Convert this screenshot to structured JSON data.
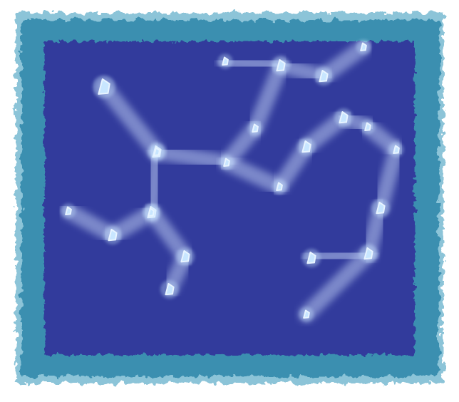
{
  "board": {
    "name": "constellation-map",
    "colors": {
      "background": "#ffffff",
      "frame_outer": "#8cc4d8",
      "frame": "#3a8fb0",
      "frame_dark": "#2e7aa0",
      "sky": "#333a9c",
      "sky_deep": "#2d3290",
      "path_glow": "#b8c8f0",
      "star": "#c8e6ff",
      "star_outline": "#e8f4ff"
    }
  },
  "stars": [
    {
      "id": "s1",
      "icon": "star-glyph",
      "size": "large"
    },
    {
      "id": "s2",
      "icon": "star-glyph",
      "size": "medium"
    },
    {
      "id": "s3",
      "icon": "star-glyph",
      "size": "medium"
    },
    {
      "id": "s4",
      "icon": "star-glyph",
      "size": "medium"
    },
    {
      "id": "s5",
      "icon": "star-glyph",
      "size": "small"
    },
    {
      "id": "s6",
      "icon": "star-glyph",
      "size": "small"
    },
    {
      "id": "s7",
      "icon": "star-glyph",
      "size": "small"
    },
    {
      "id": "s8",
      "icon": "star-glyph",
      "size": "medium"
    },
    {
      "id": "s9",
      "icon": "star-glyph",
      "size": "small"
    },
    {
      "id": "s10",
      "icon": "star-glyph",
      "size": "medium"
    },
    {
      "id": "s11",
      "icon": "star-glyph",
      "size": "small"
    },
    {
      "id": "s12",
      "icon": "star-glyph",
      "size": "medium"
    },
    {
      "id": "s13",
      "icon": "star-glyph",
      "size": "small"
    },
    {
      "id": "s14",
      "icon": "star-glyph",
      "size": "medium"
    },
    {
      "id": "s15",
      "icon": "star-glyph",
      "size": "small"
    },
    {
      "id": "s16",
      "icon": "star-glyph",
      "size": "small"
    },
    {
      "id": "s17",
      "icon": "star-glyph",
      "size": "medium"
    },
    {
      "id": "s18",
      "icon": "star-glyph",
      "size": "medium"
    },
    {
      "id": "s19",
      "icon": "star-glyph",
      "size": "medium"
    },
    {
      "id": "s20",
      "icon": "star-glyph",
      "size": "small"
    },
    {
      "id": "s21",
      "icon": "star-glyph",
      "size": "medium"
    },
    {
      "id": "s22",
      "icon": "star-glyph",
      "size": "medium"
    },
    {
      "id": "s23",
      "icon": "star-glyph",
      "size": "small"
    },
    {
      "id": "s24",
      "icon": "star-glyph",
      "size": "small"
    }
  ],
  "links": [
    [
      "s1",
      "s2"
    ],
    [
      "s2",
      "s3"
    ],
    [
      "s3",
      "s4"
    ],
    [
      "s4",
      "s5"
    ],
    [
      "s2",
      "s6"
    ],
    [
      "s6",
      "s7"
    ],
    [
      "s7",
      "s8"
    ],
    [
      "s6",
      "s9"
    ],
    [
      "s9",
      "s10"
    ],
    [
      "s10",
      "s11"
    ],
    [
      "s11",
      "s12"
    ],
    [
      "s12",
      "s13"
    ],
    [
      "s13",
      "s14"
    ],
    [
      "s14",
      "s15"
    ],
    [
      "s15",
      "s16"
    ],
    [
      "s16",
      "s17"
    ],
    [
      "s17",
      "s18"
    ],
    [
      "s18",
      "s19"
    ],
    [
      "s19",
      "s20"
    ],
    [
      "s19",
      "s21"
    ],
    [
      "s13",
      "s22"
    ],
    [
      "s22",
      "s23"
    ],
    [
      "s23",
      "s24"
    ]
  ]
}
